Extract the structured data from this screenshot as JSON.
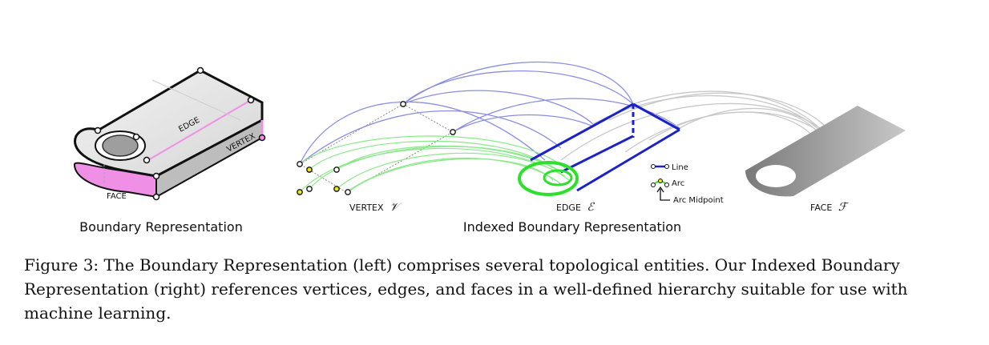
{
  "figure": {
    "brep": {
      "face_label": "FACE",
      "edge_label": "EDGE",
      "vertex_label": "VERTEX",
      "subtitle": "Boundary Representation"
    },
    "ibrep": {
      "vertex_label": "VERTEX",
      "vertex_symbol": "𝒱",
      "edge_label": "EDGE",
      "edge_symbol": "ℰ",
      "face_label": "FACE",
      "face_symbol": "ℱ",
      "legend": {
        "line": "Line",
        "arc": "Arc",
        "arc_midpoint": "Arc Midpoint"
      },
      "subtitle": "Indexed Boundary Representation"
    },
    "colors": {
      "face_pink": "#ef8fe6",
      "edge_blue": "#1a22c8",
      "arc_green": "#2ee02e",
      "vertex_yellow": "#e6e81a",
      "face_gray": "#9a9a9a"
    }
  },
  "caption": {
    "label": "Figure 3:",
    "text": "The Boundary Representation (left) comprises several topological entities. Our Indexed Boundary Representation (right) references vertices, edges, and faces in a well-defined hierarchy suitable for use with machine learning."
  }
}
